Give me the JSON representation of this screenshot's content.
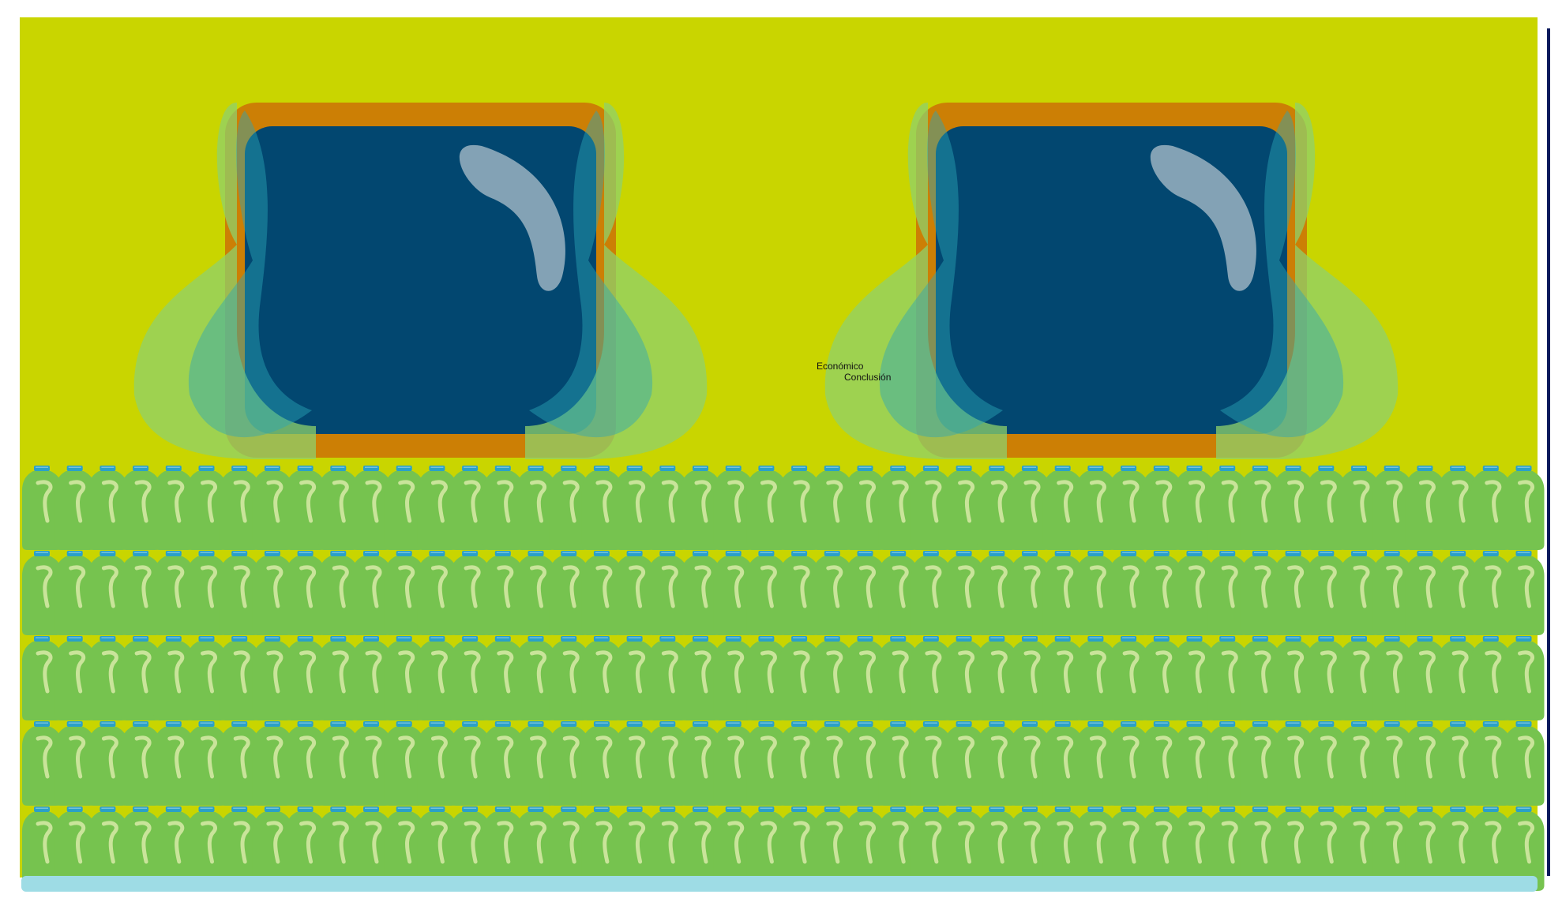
{
  "labels": {
    "top": "Económico",
    "bottom": "Conclusión"
  },
  "colors": {
    "page": "#ffffff",
    "panel": "#c9d500",
    "frame": "#cc7f05",
    "screen": "#024770",
    "highlight": "#8aa8b8",
    "drape_light": "#8fd06b",
    "drape_mid": "#6cc35a",
    "drape_teal": "#2aa6b8",
    "bottle": "#76c34f",
    "bottle_cap": "#2aa0c8",
    "bottle_shine": "#c9e49a",
    "base_strip": "#9edce5",
    "edge_line": "#0a1a5c"
  },
  "icons": {
    "screen": "tv-screen-icon",
    "bottle": "bottle-icon"
  }
}
